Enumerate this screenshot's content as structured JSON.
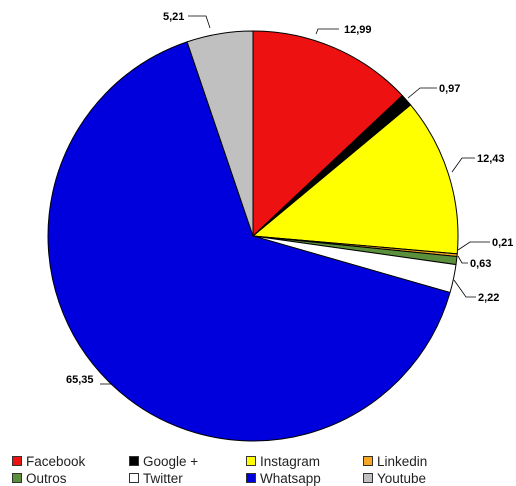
{
  "chart_data": {
    "type": "pie",
    "start_angle_deg": 0,
    "direction": "clockwise",
    "slices": [
      {
        "label": "Facebook",
        "value": 12.99,
        "display": "12,99",
        "color": "#ee1111"
      },
      {
        "label": "Google +",
        "value": 0.97,
        "display": "0,97",
        "color": "#000000"
      },
      {
        "label": "Instagram",
        "value": 12.43,
        "display": "12,43",
        "color": "#ffff00"
      },
      {
        "label": "Linkedin",
        "value": 0.21,
        "display": "0,21",
        "color": "#f5a623"
      },
      {
        "label": "Outros",
        "value": 0.63,
        "display": "0,63",
        "color": "#5a8f3c"
      },
      {
        "label": "Twitter",
        "value": 2.22,
        "display": "2,22",
        "color": "#ffffff"
      },
      {
        "label": "Whatsapp",
        "value": 65.35,
        "display": "65,35",
        "color": "#0000dd"
      },
      {
        "label": "Youtube",
        "value": 5.21,
        "display": "5,21",
        "color": "#c0c0c0"
      }
    ],
    "legend": {
      "position": "bottom",
      "items": [
        "Facebook",
        "Google +",
        "Instagram",
        "Linkedin",
        "Outros",
        "Twitter",
        "Whatsapp",
        "Youtube"
      ]
    }
  }
}
